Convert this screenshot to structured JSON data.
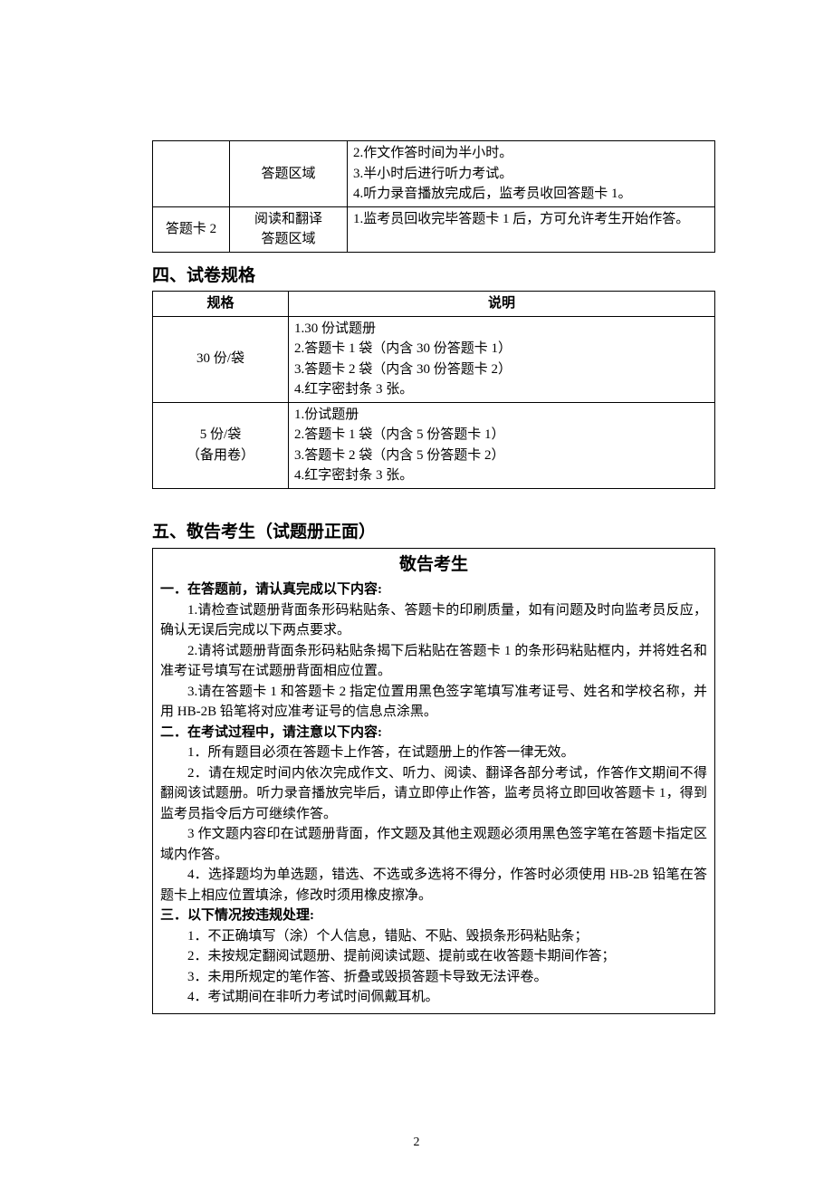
{
  "table1": {
    "rows": [
      {
        "c1": "",
        "c2": "答题区域",
        "c3_lines": [
          "2.作文作答时间为半小时。",
          "3.半小时后进行听力考试。",
          "4.听力录音播放完成后，监考员收回答题卡 1。"
        ]
      },
      {
        "c1": "答题卡 2",
        "c2": "阅读和翻译\n答题区域",
        "c3_lines": [
          "1.监考员回收完毕答题卡 1 后，方可允许考生开始作答。"
        ]
      }
    ]
  },
  "section4_heading": "四、试卷规格",
  "table2": {
    "header": {
      "c1": "规格",
      "c2": "说明"
    },
    "rows": [
      {
        "c1": "30 份/袋",
        "c2_lines": [
          "1.30 份试题册",
          "2.答题卡 1 袋（内含 30 份答题卡 1）",
          "3.答题卡 2 袋（内含 30 份答题卡 2）",
          "4.红字密封条 3 张。"
        ]
      },
      {
        "c1": "5 份/袋\n（备用卷）",
        "c2_lines": [
          "1.份试题册",
          "2.答题卡 1 袋（内含 5 份答题卡 1）",
          "3.答题卡 2 袋（内含 5 份答题卡 2）",
          "4.红字密封条 3 张。"
        ]
      }
    ]
  },
  "section5_heading": "五、敬告考生（试题册正面）",
  "notice": {
    "title": "敬告考生",
    "p1_head": "一．在答题前，请认真完成以下内容:",
    "p1_items": [
      "1.请检查试题册背面条形码粘贴条、答题卡的印刷质量，如有问题及时向监考员反应，确认无误后完成以下两点要求。",
      "2.请将试题册背面条形码粘贴条揭下后粘贴在答题卡 1 的条形码粘贴框内，并将姓名和准考证号填写在试题册背面相应位置。",
      "3.请在答题卡 1 和答题卡 2 指定位置用黑色签字笔填写准考证号、姓名和学校名称，并用 HB-2B 铅笔将对应准考证号的信息点涂黑。"
    ],
    "p2_head": "二．在考试过程中，请注意以下内容:",
    "p2_items": [
      "1．所有题目必须在答题卡上作答，在试题册上的作答一律无效。",
      "2．请在规定时间内依次完成作文、听力、阅读、翻译各部分考试，作答作文期间不得翻阅该试题册。听力录音播放完毕后，请立即停止作答，监考员将立即回收答题卡 1，得到监考员指令后方可继续作答。",
      "3 作文题内容印在试题册背面，作文题及其他主观题必须用黑色签字笔在答题卡指定区域内作答。",
      "4．选择题均为单选题，错选、不选或多选将不得分，作答时必须使用 HB-2B 铅笔在答题卡上相应位置填涂，修改时须用橡皮擦净。"
    ],
    "p3_head": "三．以下情况按违规处理:",
    "p3_items": [
      "1．不正确填写（涂）个人信息，错贴、不贴、毁损条形码粘贴条；",
      "2．未按规定翻阅试题册、提前阅读试题、提前或在收答题卡期间作答；",
      "3．未用所规定的笔作答、折叠或毁损答题卡导致无法评卷。",
      "4．考试期间在非听力考试时间佩戴耳机。"
    ]
  },
  "page_number": "2"
}
